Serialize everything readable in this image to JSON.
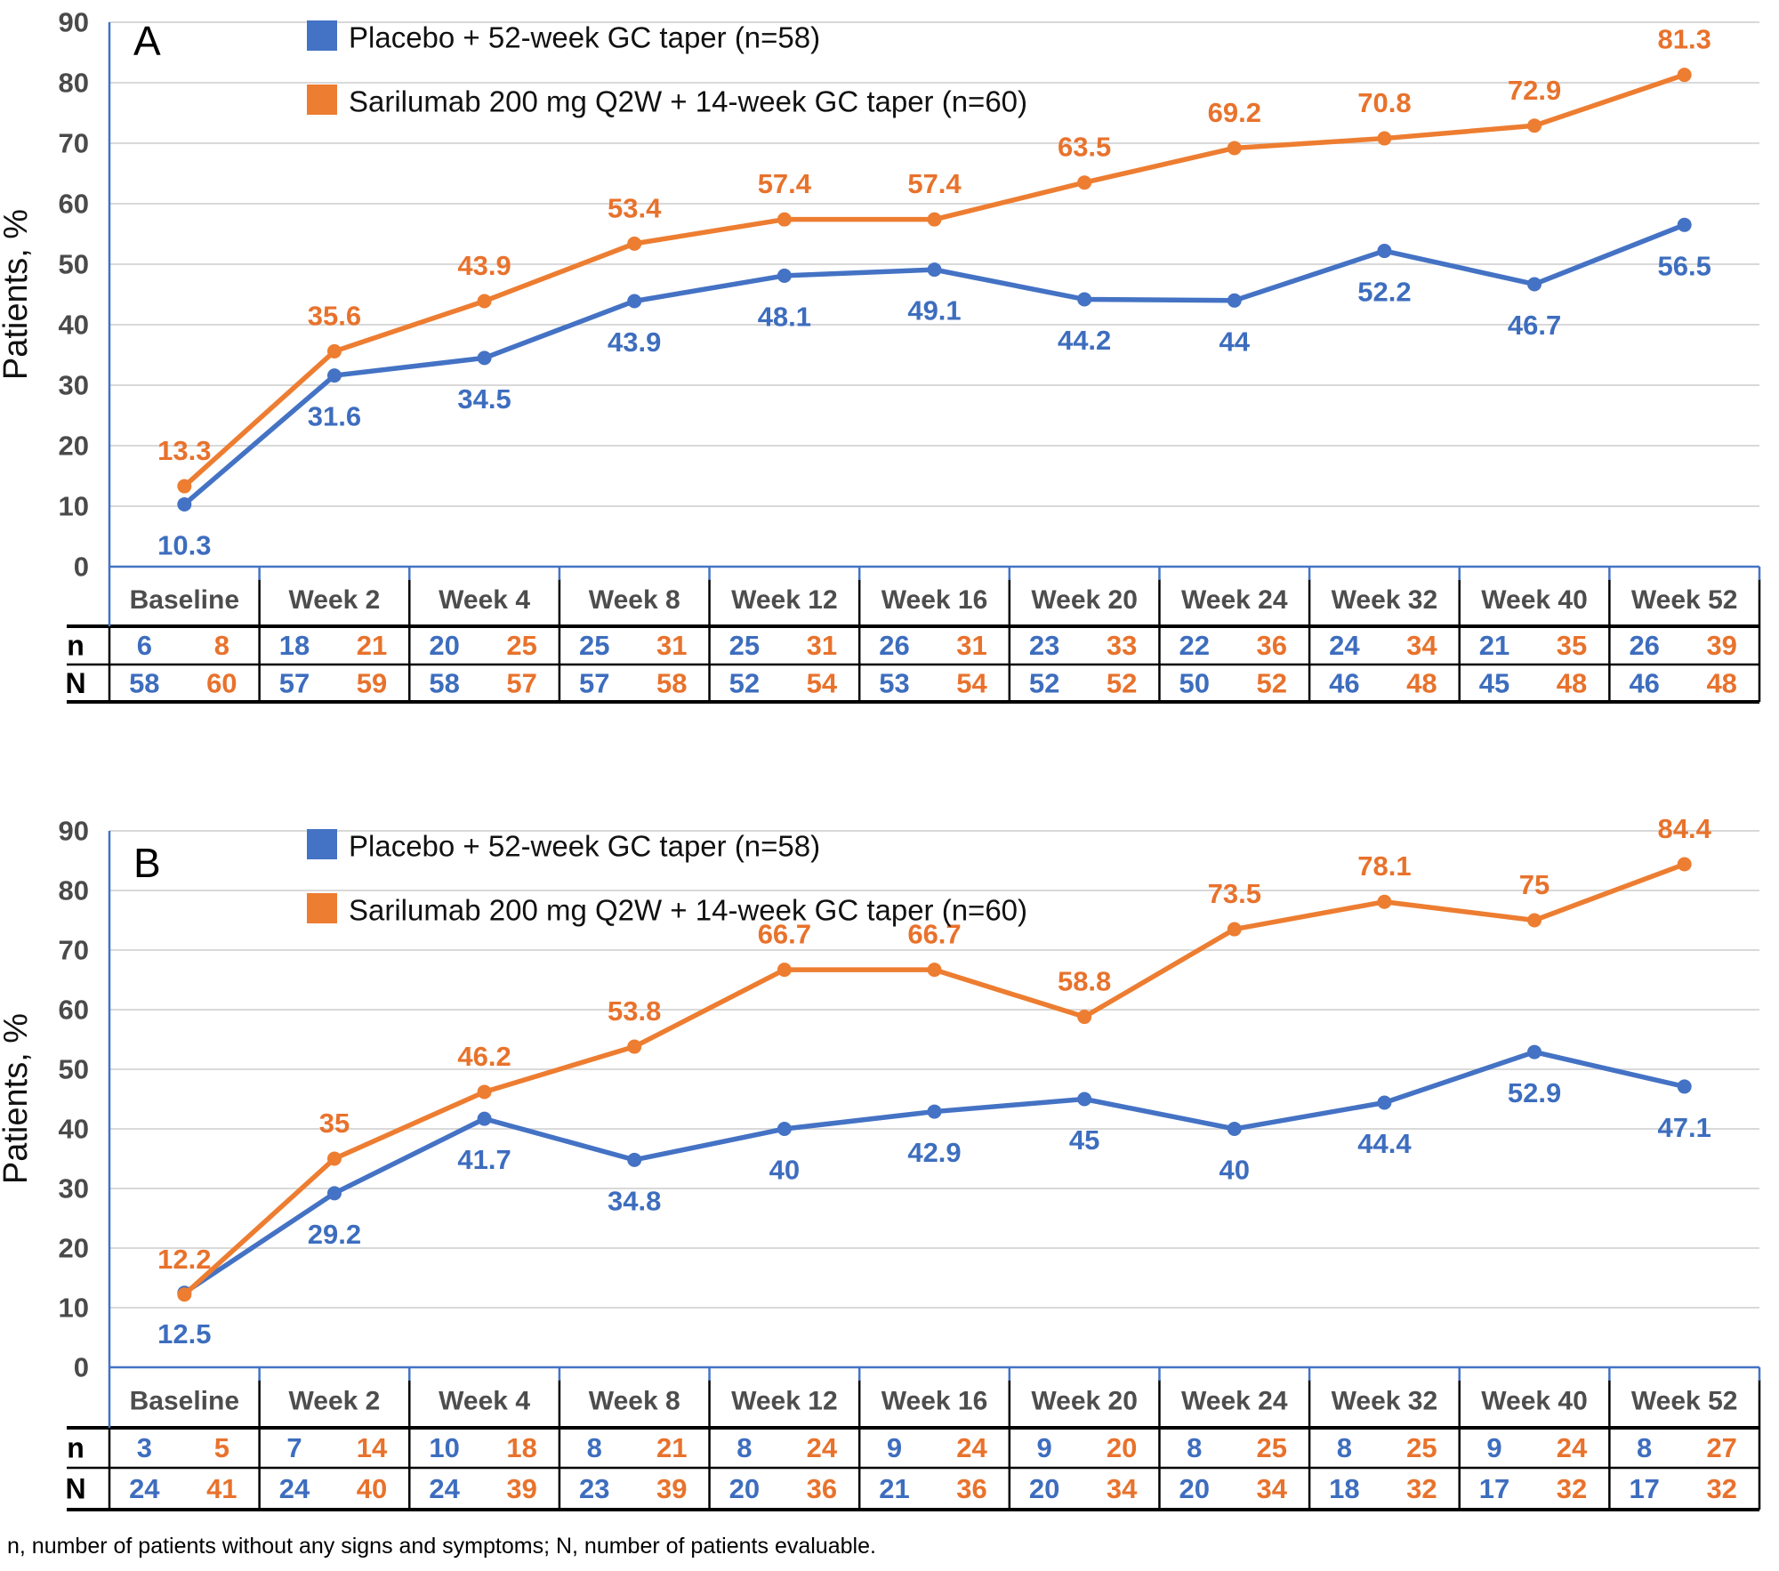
{
  "y_axis": {
    "label": "Patients, %",
    "min": 0,
    "max": 90,
    "step": 10,
    "ticks": [
      0,
      10,
      20,
      30,
      40,
      50,
      60,
      70,
      80,
      90
    ]
  },
  "categories": [
    "Baseline",
    "Week 2",
    "Week 4",
    "Week 8",
    "Week 12",
    "Week 16",
    "Week 20",
    "Week 24",
    "Week 32",
    "Week 40",
    "Week 52"
  ],
  "legend": [
    {
      "key": "placebo",
      "label": "Placebo + 52-week GC taper (n=58)"
    },
    {
      "key": "sarilumab",
      "label": "Sarilumab 200 mg Q2W + 14-week GC taper (n=60)"
    }
  ],
  "table_row_labels": [
    "n",
    "N"
  ],
  "colors": {
    "placebo_line": "#4472C4",
    "sarilumab_line": "#ED7D31",
    "placebo_text": "#3D6DBE",
    "sarilumab_text": "#E8722C",
    "gridline": "#D9D9D9",
    "axis": "#4472C4",
    "table_border": "#000000"
  },
  "footnote": "n, number of patients without any signs and symptoms; N, number of patients evaluable.",
  "chart_data": [
    {
      "type": "line",
      "panel": "A",
      "title": "A",
      "ylabel": "Patients, %",
      "ylim": [
        0,
        90
      ],
      "grid": true,
      "legend_position": "top-left-inside",
      "categories": [
        "Baseline",
        "Week 2",
        "Week 4",
        "Week 8",
        "Week 12",
        "Week 16",
        "Week 20",
        "Week 24",
        "Week 32",
        "Week 40",
        "Week 52"
      ],
      "series": [
        {
          "name": "Placebo + 52-week GC taper (n=58)",
          "key": "placebo",
          "values": [
            10.3,
            31.6,
            34.5,
            43.9,
            48.1,
            49.1,
            44.2,
            44,
            52.2,
            46.7,
            56.5
          ]
        },
        {
          "name": "Sarilumab 200 mg Q2W + 14-week GC taper (n=60)",
          "key": "sarilumab",
          "values": [
            13.3,
            35.6,
            43.9,
            53.4,
            57.4,
            57.4,
            63.5,
            69.2,
            70.8,
            72.9,
            81.3
          ]
        }
      ],
      "table": {
        "n": {
          "placebo": [
            6,
            18,
            20,
            25,
            25,
            26,
            23,
            22,
            24,
            21,
            26
          ],
          "sarilumab": [
            8,
            21,
            25,
            31,
            31,
            31,
            33,
            36,
            34,
            35,
            39
          ]
        },
        "N": {
          "placebo": [
            58,
            57,
            58,
            57,
            52,
            53,
            52,
            50,
            46,
            45,
            46
          ],
          "sarilumab": [
            60,
            59,
            57,
            58,
            54,
            54,
            52,
            52,
            48,
            48,
            48
          ]
        }
      }
    },
    {
      "type": "line",
      "panel": "B",
      "title": "B",
      "ylabel": "Patients, %",
      "ylim": [
        0,
        90
      ],
      "grid": true,
      "legend_position": "top-left-inside",
      "categories": [
        "Baseline",
        "Week 2",
        "Week 4",
        "Week 8",
        "Week 12",
        "Week 16",
        "Week 20",
        "Week 24",
        "Week 32",
        "Week 40",
        "Week 52"
      ],
      "series": [
        {
          "name": "Placebo + 52-week GC taper (n=58)",
          "key": "placebo",
          "values": [
            12.5,
            29.2,
            41.7,
            34.8,
            40,
            42.9,
            45,
            40,
            44.4,
            52.9,
            47.1
          ]
        },
        {
          "name": "Sarilumab 200 mg Q2W + 14-week GC taper (n=60)",
          "key": "sarilumab",
          "values": [
            12.2,
            35,
            46.2,
            53.8,
            66.7,
            66.7,
            58.8,
            73.5,
            78.1,
            75,
            84.4
          ]
        }
      ],
      "table": {
        "n": {
          "placebo": [
            3,
            7,
            10,
            8,
            8,
            9,
            9,
            8,
            8,
            9,
            8
          ],
          "sarilumab": [
            5,
            14,
            18,
            21,
            24,
            24,
            20,
            25,
            25,
            24,
            27
          ]
        },
        "N": {
          "placebo": [
            24,
            24,
            24,
            23,
            20,
            21,
            20,
            20,
            18,
            17,
            17
          ],
          "sarilumab": [
            41,
            40,
            39,
            39,
            36,
            36,
            34,
            34,
            32,
            32,
            32
          ]
        }
      }
    }
  ]
}
